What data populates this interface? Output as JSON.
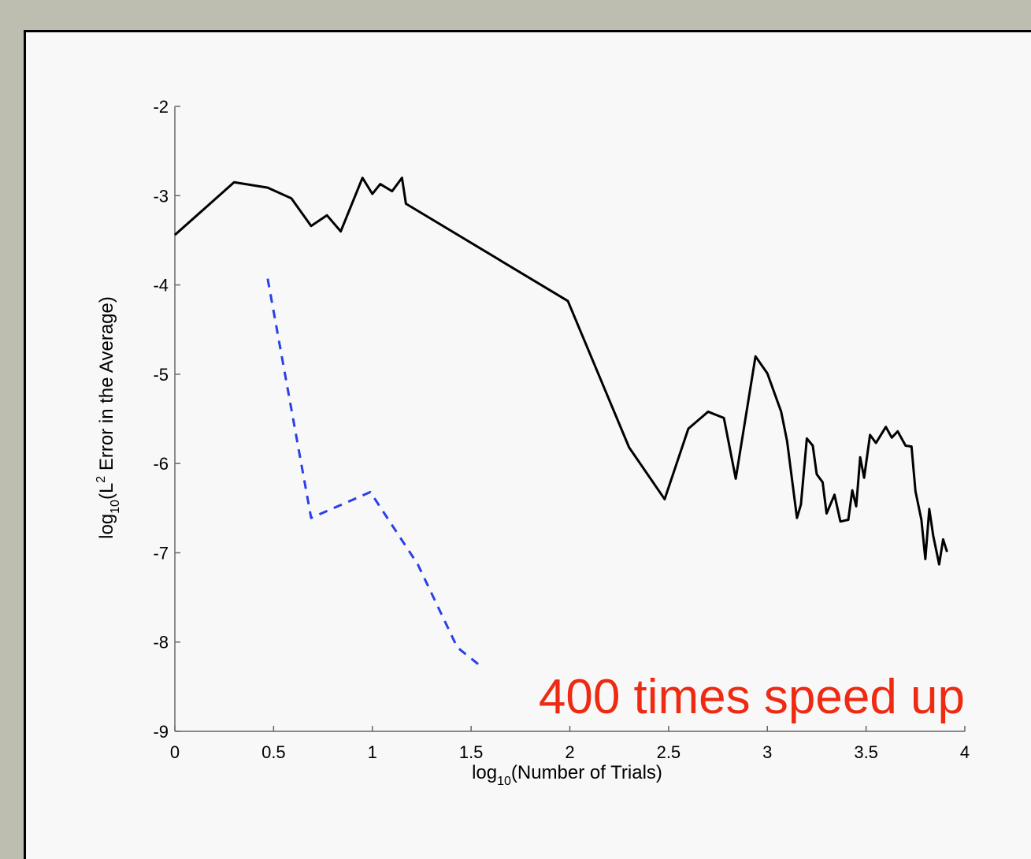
{
  "chart_data": {
    "type": "line",
    "annotation": "400 times speed up",
    "x_label": [
      "log",
      "10",
      "(Number of Trials)"
    ],
    "y_label": [
      "log",
      "10",
      "(L",
      "2",
      " Error in the Average)"
    ],
    "xlim": [
      0,
      4
    ],
    "ylim": [
      -9,
      -2
    ],
    "xticks": [
      0,
      0.5,
      1,
      1.5,
      2,
      2.5,
      3,
      3.5,
      4
    ],
    "yticks": [
      -2,
      -3,
      -4,
      -5,
      -6,
      -7,
      -8,
      -9
    ],
    "series": [
      {
        "color": "#000000",
        "dashed": false,
        "x": [
          0,
          0.3,
          0.47,
          0.59,
          0.69,
          0.77,
          0.84,
          0.95,
          1.0,
          1.04,
          1.1,
          1.15,
          1.17,
          1.99,
          2.3,
          2.48,
          2.6,
          2.7,
          2.78,
          2.84,
          2.94,
          3.0,
          3.07,
          3.1,
          3.15,
          3.17,
          3.2,
          3.23,
          3.25,
          3.28,
          3.3,
          3.34,
          3.37,
          3.41,
          3.43,
          3.45,
          3.47,
          3.49,
          3.52,
          3.55,
          3.6,
          3.63,
          3.66,
          3.7,
          3.73,
          3.75,
          3.78,
          3.8,
          3.82,
          3.84,
          3.87,
          3.89,
          3.91
        ],
        "values": [
          -3.44,
          -2.85,
          -2.91,
          -3.03,
          -3.34,
          -3.22,
          -3.4,
          -2.8,
          -2.98,
          -2.87,
          -2.95,
          -2.8,
          -3.09,
          -4.18,
          -5.82,
          -6.4,
          -5.61,
          -5.42,
          -5.49,
          -6.17,
          -4.8,
          -4.99,
          -5.42,
          -5.75,
          -6.61,
          -6.46,
          -5.72,
          -5.8,
          -6.12,
          -6.21,
          -6.56,
          -6.35,
          -6.65,
          -6.63,
          -6.3,
          -6.48,
          -5.93,
          -6.16,
          -5.68,
          -5.77,
          -5.59,
          -5.71,
          -5.64,
          -5.8,
          -5.81,
          -6.31,
          -6.63,
          -7.07,
          -6.51,
          -6.81,
          -7.13,
          -6.85,
          -6.99
        ]
      },
      {
        "color": "#2a3fe8",
        "dashed": true,
        "x": [
          0.47,
          0.69,
          0.99,
          1.23,
          1.43,
          1.56
        ],
        "values": [
          -3.93,
          -6.61,
          -6.32,
          -7.13,
          -8.06,
          -8.29
        ]
      }
    ]
  }
}
